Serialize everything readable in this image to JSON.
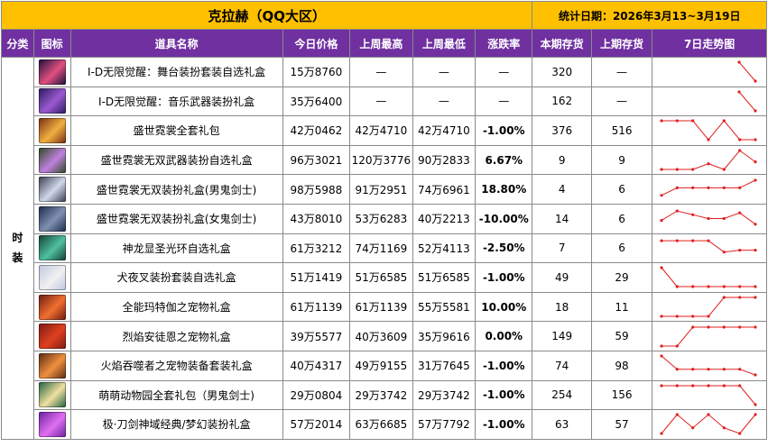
{
  "header": {
    "title": "克拉赫（QQ大区）",
    "date_range": "统计日期：2026年3月13~3月19日"
  },
  "columns": [
    "分类",
    "图标",
    "道具名称",
    "今日价格",
    "上周最高",
    "上周最低",
    "涨跌率",
    "本期存货",
    "上期存货",
    "7日走势图"
  ],
  "category": "时装",
  "rows": [
    {
      "name": "I-D无限觉醒：舞台装扮套装自选礼盒",
      "today": "15万8760",
      "high": "—",
      "low": "—",
      "change": "—",
      "change_type": "none",
      "stock_now": "320",
      "stock_prev": "—",
      "icon": "stage-outfit-box-icon",
      "color1": "#1a0f3a",
      "color2": "#e05080",
      "trend": [
        1,
        0
      ]
    },
    {
      "name": "I-D无限觉醒：音乐武器装扮礼盒",
      "today": "35万6400",
      "high": "—",
      "low": "—",
      "change": "—",
      "change_type": "none",
      "stock_now": "162",
      "stock_prev": "—",
      "icon": "music-weapon-box-icon",
      "color1": "#2a1a60",
      "color2": "#9b59d0",
      "trend": [
        1,
        0
      ]
    },
    {
      "name": "盛世霓裳全套礼包",
      "today": "42万0462",
      "high": "42万4710",
      "low": "42万4710",
      "change": "-1.00%",
      "change_type": "neg",
      "stock_now": "376",
      "stock_prev": "516",
      "icon": "gift-pack-icon",
      "color1": "#7a2a10",
      "color2": "#f0b040",
      "trend": [
        1,
        1,
        1,
        0,
        1,
        0,
        0
      ]
    },
    {
      "name": "盛世霓裳无双武器装扮自选礼盒",
      "today": "96万3021",
      "high": "120万3776",
      "low": "90万2833",
      "change": "6.67%",
      "change_type": "pos",
      "stock_now": "9",
      "stock_prev": "9",
      "icon": "weapon-box-icon",
      "color1": "#2a4a20",
      "color2": "#c080e0",
      "trend": [
        0,
        0,
        0,
        0.3,
        0,
        1,
        0.4
      ]
    },
    {
      "name": "盛世霓裳无双装扮礼盒(男鬼剑士)",
      "today": "98万5988",
      "high": "91万2951",
      "low": "74万6961",
      "change": "18.80%",
      "change_type": "pos",
      "stock_now": "4",
      "stock_prev": "6",
      "icon": "male-slayer-icon",
      "color1": "#3a3a50",
      "color2": "#d0d8e8",
      "trend": [
        0.2,
        0.6,
        0.6,
        0.6,
        0.6,
        0.6,
        1
      ]
    },
    {
      "name": "盛世霓裳无双装扮礼盒(女鬼剑士)",
      "today": "43万8010",
      "high": "53万6283",
      "low": "40万2213",
      "change": "-10.00%",
      "change_type": "neg",
      "stock_now": "14",
      "stock_prev": "6",
      "icon": "female-slayer-icon",
      "color1": "#1a2a4a",
      "color2": "#8090b0",
      "trend": [
        0.4,
        0.9,
        0.7,
        0.5,
        0.5,
        0.8,
        0.2
      ]
    },
    {
      "name": "神龙显圣光环自选礼盒",
      "today": "61万3212",
      "high": "74万1169",
      "low": "52万4113",
      "change": "-2.50%",
      "change_type": "neg",
      "stock_now": "7",
      "stock_prev": "6",
      "icon": "dragon-aura-icon",
      "color1": "#104030",
      "color2": "#50c0a0",
      "trend": [
        0.9,
        0.9,
        0.9,
        0.9,
        0.3,
        0.4,
        0.4
      ]
    },
    {
      "name": "犬夜叉装扮套装自选礼盒",
      "today": "51万1419",
      "high": "51万6585",
      "low": "51万6585",
      "change": "-1.00%",
      "change_type": "neg",
      "stock_now": "49",
      "stock_prev": "29",
      "icon": "inuyasha-icon",
      "color1": "#c0c8e0",
      "color2": "#f0f0f0",
      "trend": [
        1,
        0,
        0,
        0,
        0,
        0,
        0
      ]
    },
    {
      "name": "全能玛特伽之宠物礼盒",
      "today": "61万1139",
      "high": "61万1139",
      "low": "55万5581",
      "change": "10.00%",
      "change_type": "pos",
      "stock_now": "18",
      "stock_prev": "11",
      "icon": "pet-box-icon",
      "color1": "#6a1a10",
      "color2": "#f07030",
      "trend": [
        0,
        0,
        0,
        0,
        1,
        1,
        1
      ]
    },
    {
      "name": "烈焰安徒恩之宠物礼盒",
      "today": "39万5577",
      "high": "40万3609",
      "low": "35万9616",
      "change": "0.00%",
      "change_type": "zero",
      "stock_now": "149",
      "stock_prev": "59",
      "icon": "flame-pet-box-icon",
      "color1": "#7a1a10",
      "color2": "#e04020",
      "trend": [
        0,
        0,
        1,
        1,
        1,
        1,
        1
      ]
    },
    {
      "name": "火焰吞噬者之宠物装备套装礼盒",
      "today": "40万4317",
      "high": "49万9155",
      "low": "31万7645",
      "change": "-1.00%",
      "change_type": "neg",
      "stock_now": "74",
      "stock_prev": "98",
      "icon": "fire-devourer-icon",
      "color1": "#5a2a10",
      "color2": "#f09040",
      "trend": [
        1,
        0.3,
        0.3,
        0.3,
        0.3,
        0.3,
        0
      ]
    },
    {
      "name": "萌萌动物园全套礼包（男鬼剑士)",
      "today": "29万0804",
      "high": "29万3742",
      "low": "29万3742",
      "change": "-1.00%",
      "change_type": "neg",
      "stock_now": "254",
      "stock_prev": "156",
      "icon": "zoo-pack-icon",
      "color1": "#206040",
      "color2": "#f0e0a0",
      "trend": [
        1,
        1,
        1,
        1,
        1,
        1,
        0
      ]
    },
    {
      "name": "极·刀剑神域经典/梦幻装扮礼盒",
      "today": "57万2014",
      "high": "63万6685",
      "low": "57万7792",
      "change": "-1.00%",
      "change_type": "neg",
      "stock_now": "63",
      "stock_prev": "57",
      "icon": "sword-art-box-icon",
      "color1": "#6a20a0",
      "color2": "#e070f0",
      "trend": [
        0,
        1,
        0.3,
        1,
        0.3,
        0,
        1
      ]
    }
  ],
  "trend_color": "#e02020"
}
